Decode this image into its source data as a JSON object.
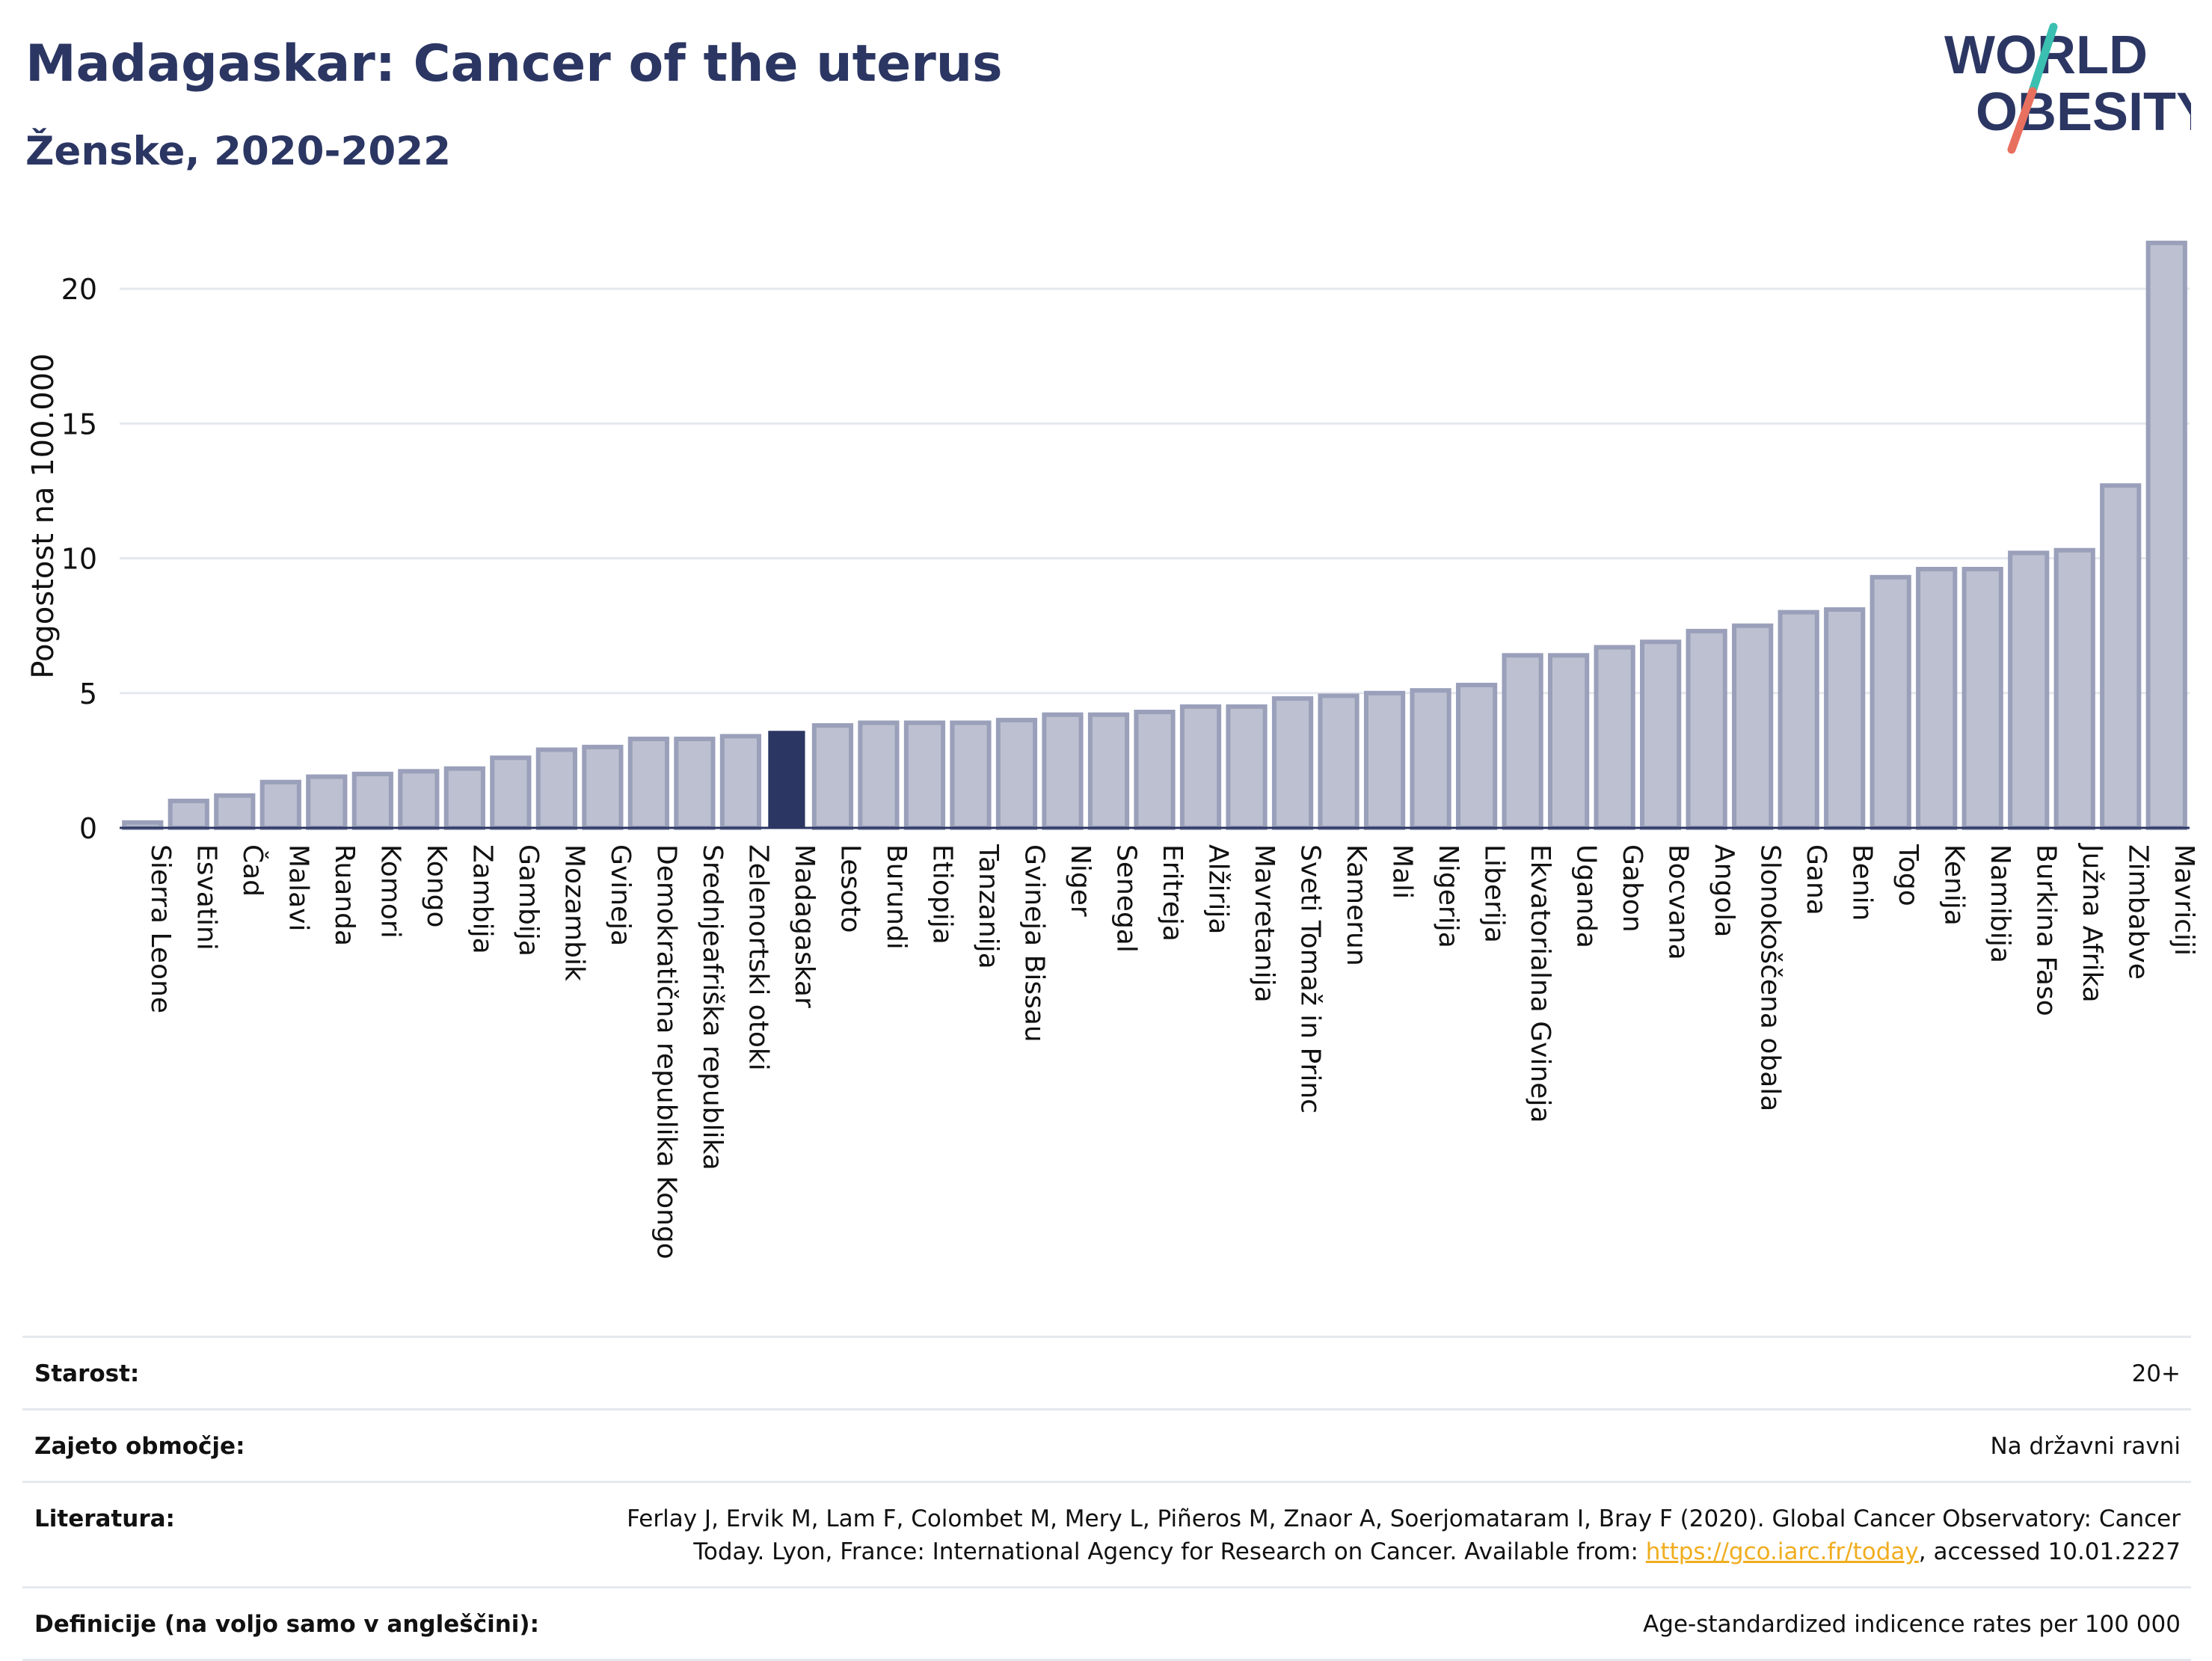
{
  "header": {
    "title": "Madagaskar: Cancer of the uterus",
    "subtitle": "Ženske, 2020-2022"
  },
  "logo": {
    "line1": "WORLD",
    "line2": "OBESITY",
    "colors": {
      "text": "#2b3663",
      "slash_top": "#3bbfb0",
      "slash_bottom": "#e8705f"
    }
  },
  "colors": {
    "highlight_bar": "#2b3663",
    "bar_fill": "#bcc0d0",
    "bar_stroke": "#9aa0ba",
    "grid": "#e6e8ef"
  },
  "chart_data": {
    "type": "bar",
    "ylabel": "Pogostost na 100.000",
    "ylim": [
      0,
      22
    ],
    "yticks": [
      0,
      5,
      10,
      15,
      20
    ],
    "grid": true,
    "highlight": "Madagaskar",
    "categories": [
      "Sierra Leone",
      "Esvatini",
      "Čad",
      "Malavi",
      "Ruanda",
      "Komori",
      "Kongo",
      "Zambija",
      "Gambija",
      "Mozambik",
      "Gvineja",
      "Demokratična republika Kongo",
      "Srednjeafriška republika",
      "Zelenortski otoki",
      "Madagaskar",
      "Lesoto",
      "Burundi",
      "Etiopija",
      "Tanzanija",
      "Gvineja Bissau",
      "Niger",
      "Senegal",
      "Eritreja",
      "Alžirija",
      "Mavretanija",
      "Sveti Tomaž in Princ",
      "Kamerun",
      "Mali",
      "Nigerija",
      "Liberija",
      "Ekvatorialna Gvineja",
      "Uganda",
      "Gabon",
      "Bocvana",
      "Angola",
      "Slonokoščena obala",
      "Gana",
      "Benin",
      "Togo",
      "Kenija",
      "Namibija",
      "Burkina Faso",
      "Južna Afrika",
      "Zimbabve",
      "Mavriciji"
    ],
    "values": [
      0.2,
      1.0,
      1.2,
      1.7,
      1.9,
      2.0,
      2.1,
      2.2,
      2.6,
      2.9,
      3.0,
      3.3,
      3.3,
      3.4,
      3.6,
      3.8,
      3.9,
      3.9,
      3.9,
      4.0,
      4.2,
      4.2,
      4.3,
      4.5,
      4.5,
      4.8,
      4.9,
      5.0,
      5.1,
      5.3,
      6.4,
      6.4,
      6.7,
      6.9,
      7.3,
      7.5,
      8.0,
      8.1,
      9.3,
      9.6,
      9.6,
      10.2,
      10.3,
      12.7,
      21.7
    ]
  },
  "meta": [
    {
      "label": "Starost:",
      "value": "20+"
    },
    {
      "label": "Zajeto območje:",
      "value": "Na državni ravni"
    },
    {
      "label": "Literatura:",
      "value_pre": "Ferlay J, Ervik M, Lam F, Colombet M, Mery L, Piñeros M, Znaor A, Soerjomataram I, Bray F (2020). Global Cancer Observatory: Cancer Today. Lyon, France: International Agency for Research on Cancer. Available from: ",
      "link": "https://gco.iarc.fr/today",
      "value_post": ", accessed 10.01.2227"
    },
    {
      "label": "Definicije (na voljo samo v angleščini):",
      "value": "Age-standardized indicence rates per 100 000"
    }
  ]
}
